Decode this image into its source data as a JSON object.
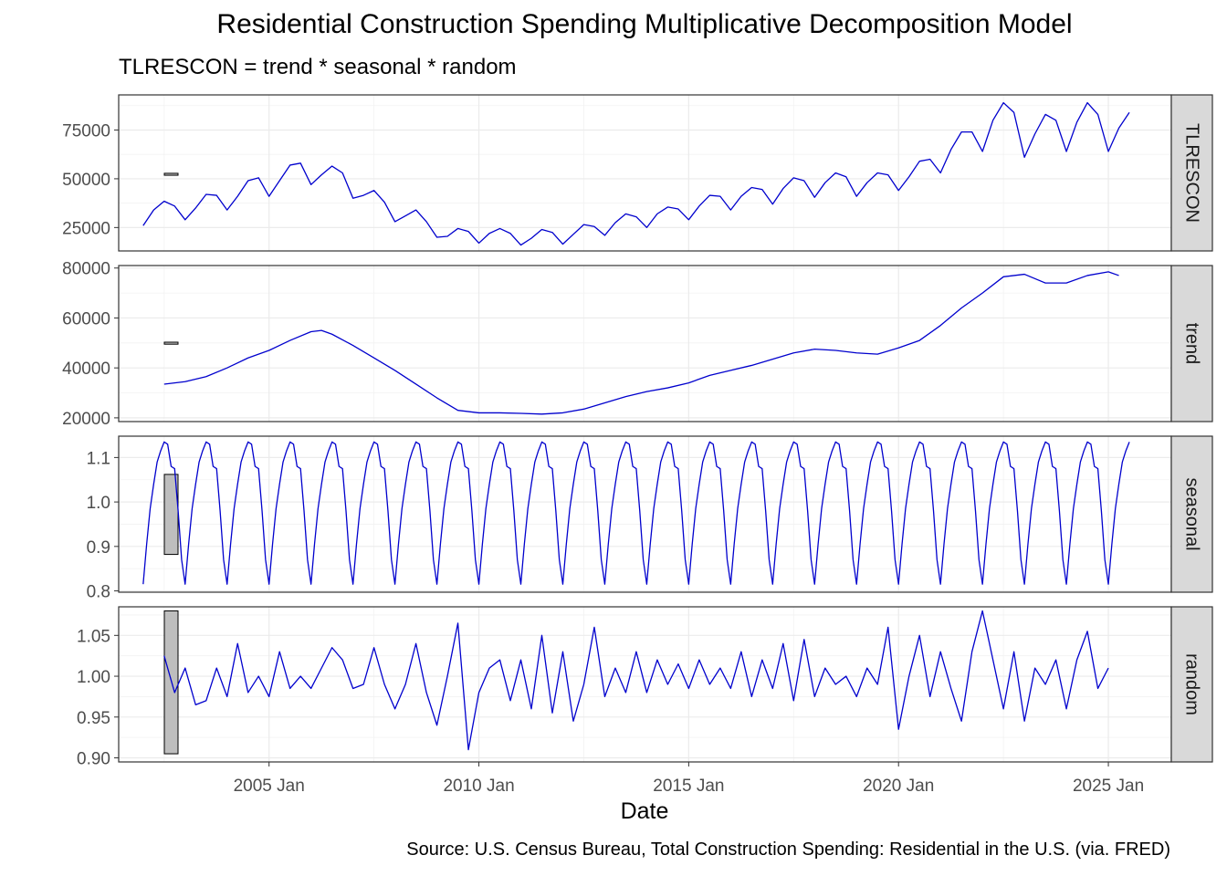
{
  "title": "Residential Construction Spending Multiplicative Decomposition Model",
  "subtitle": "TLRESCON = trend * seasonal * random",
  "caption": "Source: U.S. Census Bureau, Total Construction Spending: Residential in the U.S. (via. FRED)",
  "chart_data": {
    "type": "line",
    "xlabel": "Date",
    "x_range": [
      "2001-06",
      "2026-07"
    ],
    "x_ticks": [
      {
        "date": "2005-01",
        "label": "2005 Jan"
      },
      {
        "date": "2010-01",
        "label": "2010 Jan"
      },
      {
        "date": "2015-01",
        "label": "2015 Jan"
      },
      {
        "date": "2020-01",
        "label": "2020 Jan"
      },
      {
        "date": "2025-01",
        "label": "2025 Jan"
      }
    ],
    "line_color": "#0000CD",
    "grid": true,
    "strip_position": "right",
    "panels": [
      {
        "name": "TLRESCON",
        "ylim": [
          13000,
          93000
        ],
        "y_ticks": [
          25000,
          50000,
          75000
        ],
        "y_tick_labels": [
          "25000",
          "50000",
          "75000"
        ],
        "scale_bar": [
          51800,
          52800
        ],
        "points": [
          [
            "2002-01",
            26000
          ],
          [
            "2002-04",
            34000
          ],
          [
            "2002-07",
            38500
          ],
          [
            "2002-10",
            36000
          ],
          [
            "2003-01",
            29000
          ],
          [
            "2003-04",
            35000
          ],
          [
            "2003-07",
            42000
          ],
          [
            "2003-10",
            41500
          ],
          [
            "2004-01",
            34000
          ],
          [
            "2004-04",
            41000
          ],
          [
            "2004-07",
            49000
          ],
          [
            "2004-10",
            50500
          ],
          [
            "2005-01",
            41000
          ],
          [
            "2005-04",
            49000
          ],
          [
            "2005-07",
            57000
          ],
          [
            "2005-10",
            58000
          ],
          [
            "2006-01",
            47000
          ],
          [
            "2006-04",
            52000
          ],
          [
            "2006-07",
            56500
          ],
          [
            "2006-10",
            53000
          ],
          [
            "2007-01",
            40000
          ],
          [
            "2007-04",
            41500
          ],
          [
            "2007-07",
            44000
          ],
          [
            "2007-10",
            38000
          ],
          [
            "2008-01",
            28000
          ],
          [
            "2008-04",
            31000
          ],
          [
            "2008-07",
            34000
          ],
          [
            "2008-10",
            28000
          ],
          [
            "2009-01",
            20000
          ],
          [
            "2009-04",
            20500
          ],
          [
            "2009-07",
            24500
          ],
          [
            "2009-10",
            23000
          ],
          [
            "2010-01",
            17000
          ],
          [
            "2010-04",
            22000
          ],
          [
            "2010-07",
            24500
          ],
          [
            "2010-10",
            22000
          ],
          [
            "2011-01",
            16000
          ],
          [
            "2011-04",
            19500
          ],
          [
            "2011-07",
            24000
          ],
          [
            "2011-10",
            22500
          ],
          [
            "2012-01",
            16500
          ],
          [
            "2012-04",
            21500
          ],
          [
            "2012-07",
            26500
          ],
          [
            "2012-10",
            25500
          ],
          [
            "2013-01",
            21000
          ],
          [
            "2013-04",
            27500
          ],
          [
            "2013-07",
            32000
          ],
          [
            "2013-10",
            30500
          ],
          [
            "2014-01",
            25000
          ],
          [
            "2014-04",
            32000
          ],
          [
            "2014-07",
            35500
          ],
          [
            "2014-10",
            34500
          ],
          [
            "2015-01",
            29000
          ],
          [
            "2015-04",
            36000
          ],
          [
            "2015-07",
            41500
          ],
          [
            "2015-10",
            41000
          ],
          [
            "2016-01",
            34000
          ],
          [
            "2016-04",
            41000
          ],
          [
            "2016-07",
            45500
          ],
          [
            "2016-10",
            44500
          ],
          [
            "2017-01",
            37000
          ],
          [
            "2017-04",
            45000
          ],
          [
            "2017-07",
            50500
          ],
          [
            "2017-10",
            49000
          ],
          [
            "2018-01",
            40500
          ],
          [
            "2018-04",
            48000
          ],
          [
            "2018-07",
            53000
          ],
          [
            "2018-10",
            51000
          ],
          [
            "2019-01",
            41000
          ],
          [
            "2019-04",
            48000
          ],
          [
            "2019-07",
            53000
          ],
          [
            "2019-10",
            52000
          ],
          [
            "2020-01",
            44000
          ],
          [
            "2020-04",
            51000
          ],
          [
            "2020-07",
            59000
          ],
          [
            "2020-10",
            60000
          ],
          [
            "2021-01",
            53000
          ],
          [
            "2021-04",
            65000
          ],
          [
            "2021-07",
            74000
          ],
          [
            "2021-10",
            74000
          ],
          [
            "2022-01",
            64000
          ],
          [
            "2022-04",
            80000
          ],
          [
            "2022-07",
            89000
          ],
          [
            "2022-10",
            84000
          ],
          [
            "2023-01",
            61000
          ],
          [
            "2023-04",
            73000
          ],
          [
            "2023-07",
            83000
          ],
          [
            "2023-10",
            80000
          ],
          [
            "2024-01",
            64000
          ],
          [
            "2024-04",
            79000
          ],
          [
            "2024-07",
            89000
          ],
          [
            "2024-10",
            83000
          ],
          [
            "2025-01",
            64000
          ],
          [
            "2025-04",
            76000
          ],
          [
            "2025-07",
            84000
          ]
        ]
      },
      {
        "name": "trend",
        "ylim": [
          18500,
          81000
        ],
        "y_ticks": [
          20000,
          40000,
          60000,
          80000
        ],
        "y_tick_labels": [
          "20000",
          "40000",
          "60000",
          "80000"
        ],
        "scale_bar": [
          49500,
          50300
        ],
        "points": [
          [
            "2002-07",
            33500
          ],
          [
            "2003-01",
            34500
          ],
          [
            "2003-07",
            36500
          ],
          [
            "2004-01",
            40000
          ],
          [
            "2004-07",
            44000
          ],
          [
            "2005-01",
            47000
          ],
          [
            "2005-07",
            51000
          ],
          [
            "2006-01",
            54500
          ],
          [
            "2006-04",
            55000
          ],
          [
            "2006-07",
            53500
          ],
          [
            "2007-01",
            49000
          ],
          [
            "2007-07",
            44000
          ],
          [
            "2008-01",
            39000
          ],
          [
            "2008-07",
            33500
          ],
          [
            "2009-01",
            28000
          ],
          [
            "2009-07",
            23000
          ],
          [
            "2010-01",
            22000
          ],
          [
            "2010-07",
            22000
          ],
          [
            "2011-01",
            21800
          ],
          [
            "2011-07",
            21500
          ],
          [
            "2012-01",
            22000
          ],
          [
            "2012-07",
            23500
          ],
          [
            "2013-01",
            26000
          ],
          [
            "2013-07",
            28500
          ],
          [
            "2014-01",
            30500
          ],
          [
            "2014-07",
            32000
          ],
          [
            "2015-01",
            34000
          ],
          [
            "2015-07",
            37000
          ],
          [
            "2016-01",
            39000
          ],
          [
            "2016-07",
            41000
          ],
          [
            "2017-01",
            43500
          ],
          [
            "2017-07",
            46000
          ],
          [
            "2018-01",
            47500
          ],
          [
            "2018-07",
            47000
          ],
          [
            "2019-01",
            46000
          ],
          [
            "2019-07",
            45500
          ],
          [
            "2020-01",
            48000
          ],
          [
            "2020-07",
            51000
          ],
          [
            "2021-01",
            57000
          ],
          [
            "2021-07",
            64000
          ],
          [
            "2022-01",
            70000
          ],
          [
            "2022-07",
            76500
          ],
          [
            "2023-01",
            77500
          ],
          [
            "2023-07",
            74000
          ],
          [
            "2024-01",
            74000
          ],
          [
            "2024-07",
            77000
          ],
          [
            "2025-01",
            78500
          ],
          [
            "2025-04",
            77000
          ]
        ]
      },
      {
        "name": "seasonal",
        "ylim": [
          0.797,
          1.148
        ],
        "y_ticks": [
          0.8,
          0.9,
          1.0,
          1.1
        ],
        "y_tick_labels": [
          "0.8",
          "0.9",
          "1.0",
          "1.1"
        ],
        "scale_bar": [
          0.882,
          1.062
        ],
        "pattern": [
          0.815,
          0.905,
          0.985,
          1.04,
          1.09,
          1.115,
          1.135,
          1.13,
          1.08,
          1.075,
          0.98,
          0.87
        ],
        "start": "2002-01",
        "end": "2025-07"
      },
      {
        "name": "random",
        "ylim": [
          0.895,
          1.085
        ],
        "y_ticks": [
          0.9,
          0.95,
          1.0,
          1.05
        ],
        "y_tick_labels": [
          "0.90",
          "0.95",
          "1.00",
          "1.05"
        ],
        "scale_bar": [
          0.905,
          1.08
        ],
        "points": [
          [
            "2002-07",
            1.025
          ],
          [
            "2002-10",
            0.98
          ],
          [
            "2003-01",
            1.01
          ],
          [
            "2003-04",
            0.965
          ],
          [
            "2003-07",
            0.97
          ],
          [
            "2003-10",
            1.01
          ],
          [
            "2004-01",
            0.975
          ],
          [
            "2004-04",
            1.04
          ],
          [
            "2004-07",
            0.98
          ],
          [
            "2004-10",
            1.0
          ],
          [
            "2005-01",
            0.975
          ],
          [
            "2005-04",
            1.03
          ],
          [
            "2005-07",
            0.985
          ],
          [
            "2005-10",
            1.0
          ],
          [
            "2006-01",
            0.985
          ],
          [
            "2006-04",
            1.01
          ],
          [
            "2006-07",
            1.035
          ],
          [
            "2006-10",
            1.02
          ],
          [
            "2007-01",
            0.985
          ],
          [
            "2007-04",
            0.99
          ],
          [
            "2007-07",
            1.035
          ],
          [
            "2007-10",
            0.99
          ],
          [
            "2008-01",
            0.96
          ],
          [
            "2008-04",
            0.99
          ],
          [
            "2008-07",
            1.04
          ],
          [
            "2008-10",
            0.98
          ],
          [
            "2009-01",
            0.94
          ],
          [
            "2009-04",
            1.0
          ],
          [
            "2009-07",
            1.065
          ],
          [
            "2009-10",
            0.91
          ],
          [
            "2010-01",
            0.98
          ],
          [
            "2010-04",
            1.01
          ],
          [
            "2010-07",
            1.02
          ],
          [
            "2010-10",
            0.97
          ],
          [
            "2011-01",
            1.02
          ],
          [
            "2011-04",
            0.96
          ],
          [
            "2011-07",
            1.05
          ],
          [
            "2011-10",
            0.955
          ],
          [
            "2012-01",
            1.03
          ],
          [
            "2012-04",
            0.945
          ],
          [
            "2012-07",
            0.99
          ],
          [
            "2012-10",
            1.06
          ],
          [
            "2013-01",
            0.975
          ],
          [
            "2013-04",
            1.01
          ],
          [
            "2013-07",
            0.98
          ],
          [
            "2013-10",
            1.03
          ],
          [
            "2014-01",
            0.98
          ],
          [
            "2014-04",
            1.02
          ],
          [
            "2014-07",
            0.99
          ],
          [
            "2014-10",
            1.015
          ],
          [
            "2015-01",
            0.985
          ],
          [
            "2015-04",
            1.02
          ],
          [
            "2015-07",
            0.99
          ],
          [
            "2015-10",
            1.01
          ],
          [
            "2016-01",
            0.985
          ],
          [
            "2016-04",
            1.03
          ],
          [
            "2016-07",
            0.975
          ],
          [
            "2016-10",
            1.02
          ],
          [
            "2017-01",
            0.985
          ],
          [
            "2017-04",
            1.04
          ],
          [
            "2017-07",
            0.97
          ],
          [
            "2017-10",
            1.045
          ],
          [
            "2018-01",
            0.975
          ],
          [
            "2018-04",
            1.01
          ],
          [
            "2018-07",
            0.99
          ],
          [
            "2018-10",
            1.0
          ],
          [
            "2019-01",
            0.975
          ],
          [
            "2019-04",
            1.01
          ],
          [
            "2019-07",
            0.99
          ],
          [
            "2019-10",
            1.06
          ],
          [
            "2020-01",
            0.935
          ],
          [
            "2020-04",
            1.0
          ],
          [
            "2020-07",
            1.05
          ],
          [
            "2020-10",
            0.975
          ],
          [
            "2021-01",
            1.03
          ],
          [
            "2021-04",
            0.985
          ],
          [
            "2021-07",
            0.945
          ],
          [
            "2021-10",
            1.03
          ],
          [
            "2022-01",
            1.08
          ],
          [
            "2022-04",
            1.02
          ],
          [
            "2022-07",
            0.96
          ],
          [
            "2022-10",
            1.03
          ],
          [
            "2023-01",
            0.945
          ],
          [
            "2023-04",
            1.01
          ],
          [
            "2023-07",
            0.99
          ],
          [
            "2023-10",
            1.02
          ],
          [
            "2024-01",
            0.96
          ],
          [
            "2024-04",
            1.02
          ],
          [
            "2024-07",
            1.055
          ],
          [
            "2024-10",
            0.985
          ],
          [
            "2025-01",
            1.01
          ]
        ]
      }
    ]
  }
}
